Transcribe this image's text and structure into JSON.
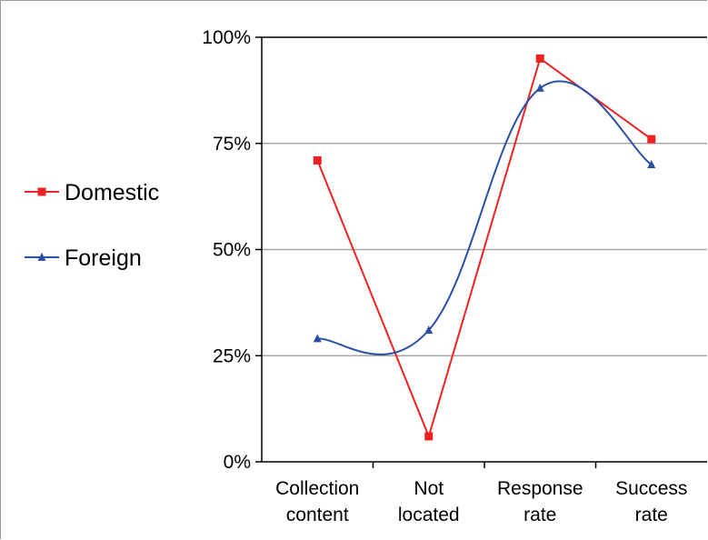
{
  "chart_data": {
    "type": "line",
    "categories": [
      [
        "Collection",
        "content"
      ],
      [
        "Not",
        "located"
      ],
      [
        "Response",
        "rate"
      ],
      [
        "Success",
        "rate"
      ]
    ],
    "ylim": [
      0,
      100
    ],
    "yticks": [
      0,
      25,
      50,
      75,
      100
    ],
    "ytick_labels": [
      "0%",
      "25%",
      "50%",
      "75%",
      "100%"
    ],
    "grid": true,
    "legend_position": "left",
    "series": [
      {
        "name": "Domestic",
        "color": "#ee2222",
        "marker": "square",
        "smooth": false,
        "values": [
          71,
          6,
          95,
          76
        ]
      },
      {
        "name": "Foreign",
        "color": "#2a4fa5",
        "marker": "triangle",
        "smooth": true,
        "values": [
          29,
          31,
          88,
          70
        ]
      }
    ]
  }
}
